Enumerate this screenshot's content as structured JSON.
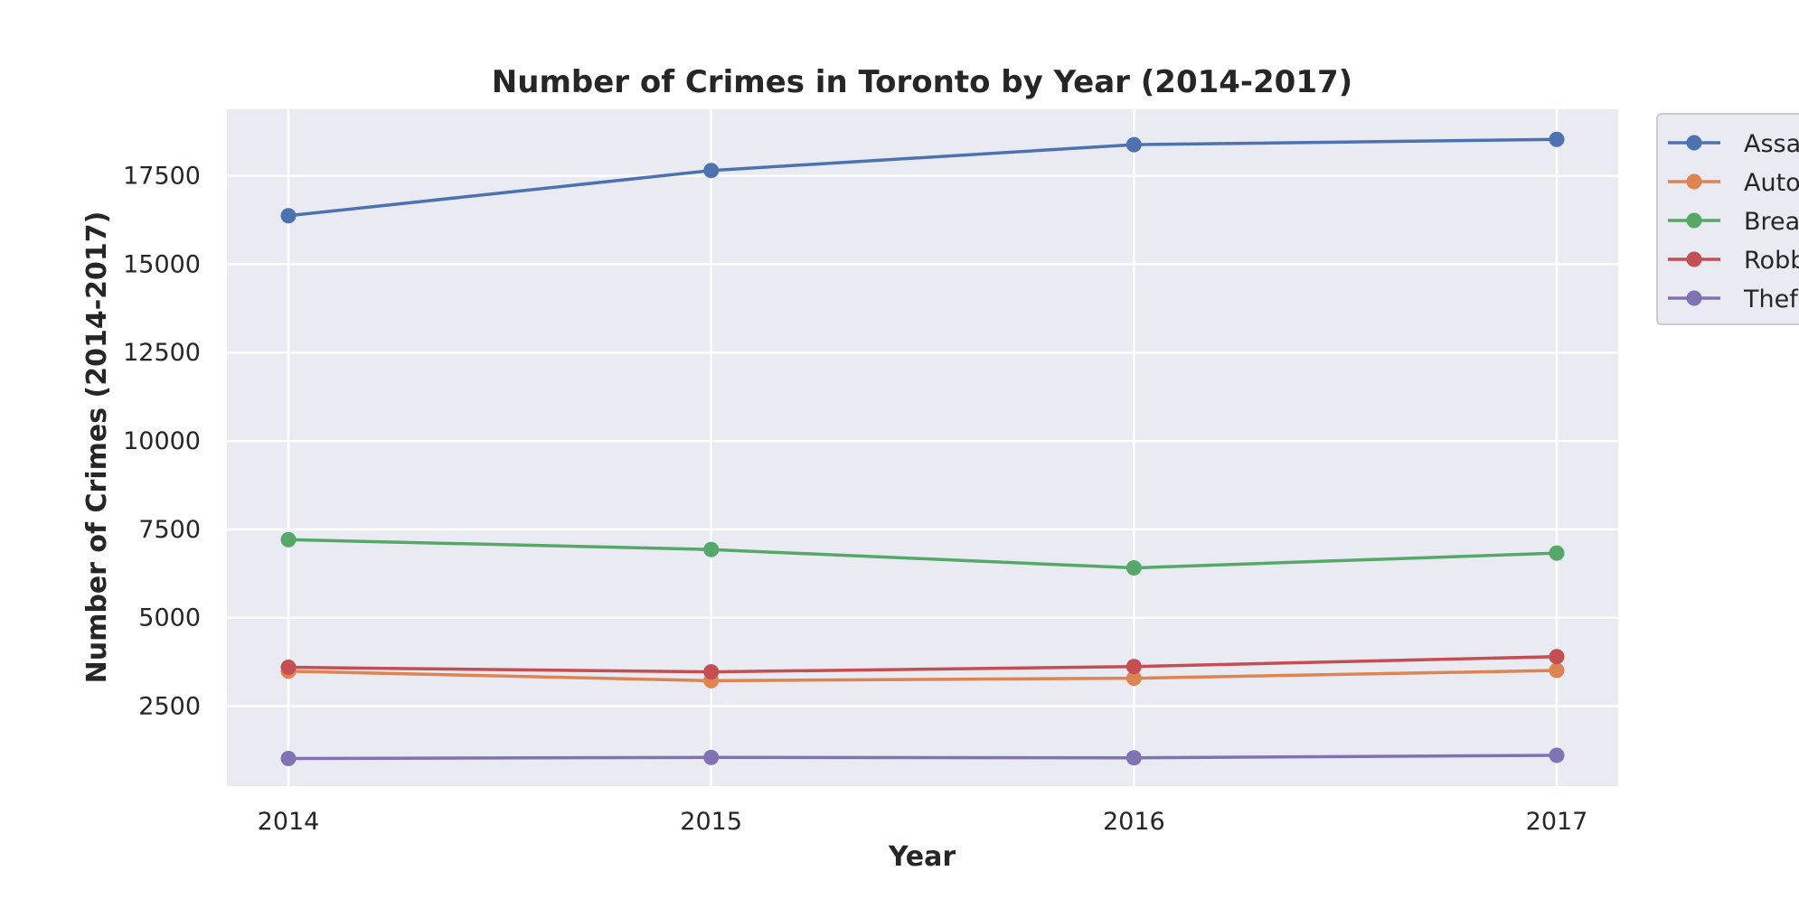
{
  "chart_data": {
    "type": "line",
    "title": "Number of Crimes in Toronto by Year (2014-2017)",
    "xlabel": "Year",
    "ylabel": "Number of Crimes (2014-2017)",
    "x": [
      2014,
      2015,
      2016,
      2017
    ],
    "x_ticks": [
      "2014",
      "2015",
      "2016",
      "2017"
    ],
    "y_ticks": [
      "2500",
      "5000",
      "7500",
      "10000",
      "12500",
      "15000",
      "17500"
    ],
    "ylim": [
      240,
      19380
    ],
    "grid": true,
    "legend_placement": "upper-right-outside",
    "series": [
      {
        "name": "Assa",
        "color": "#4c72b0",
        "values": [
          16370,
          17650,
          18380,
          18530
        ]
      },
      {
        "name": "Auto",
        "color": "#dd8452",
        "values": [
          3490,
          3220,
          3290,
          3510
        ]
      },
      {
        "name": "Brea",
        "color": "#55a868",
        "values": [
          7210,
          6930,
          6410,
          6830
        ]
      },
      {
        "name": "Robb",
        "color": "#c44e52",
        "values": [
          3600,
          3470,
          3620,
          3900
        ]
      },
      {
        "name": "Thef",
        "color": "#8172b3",
        "values": [
          1020,
          1050,
          1040,
          1110
        ]
      }
    ]
  }
}
